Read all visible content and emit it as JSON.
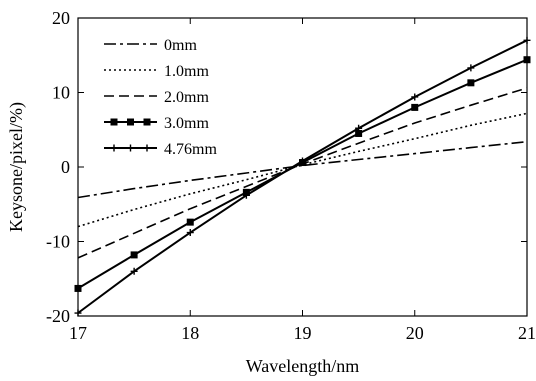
{
  "chart_data": {
    "type": "line",
    "title": "",
    "xlabel": "Wavelength/nm",
    "ylabel": "Keysone/pixel/%)",
    "xlim": [
      17,
      21
    ],
    "ylim": [
      -20,
      20
    ],
    "x_ticks": [
      17,
      18,
      19,
      20,
      21
    ],
    "y_ticks": [
      -20,
      -10,
      0,
      10,
      20
    ],
    "x_tick_labels": [
      "17",
      "18",
      "19",
      "20",
      "21"
    ],
    "y_tick_labels": [
      "-20",
      "-10",
      "0",
      "10",
      "20"
    ],
    "grid": false,
    "legend_position": "top-left",
    "x": [
      17,
      17.5,
      18,
      18.5,
      19,
      19.5,
      20,
      20.5,
      21
    ],
    "series": [
      {
        "name": "0mm",
        "style": "dashdot",
        "marker": "none",
        "values": [
          -4.1,
          -2.9,
          -1.8,
          -0.8,
          0.2,
          1.0,
          1.8,
          2.6,
          3.4
        ]
      },
      {
        "name": "1.0mm",
        "style": "dotted",
        "marker": "none",
        "values": [
          -8.0,
          -5.7,
          -3.6,
          -1.7,
          0.3,
          2.1,
          3.8,
          5.6,
          7.2
        ]
      },
      {
        "name": "2.0mm",
        "style": "dashed",
        "marker": "none",
        "values": [
          -12.2,
          -8.9,
          -5.6,
          -2.6,
          0.4,
          3.2,
          5.9,
          8.3,
          10.6
        ]
      },
      {
        "name": "3.0mm",
        "style": "solid",
        "marker": "square",
        "values": [
          -16.3,
          -11.8,
          -7.4,
          -3.4,
          0.6,
          4.5,
          8.0,
          11.3,
          14.4
        ]
      },
      {
        "name": "4.76mm",
        "style": "solid",
        "marker": "plus",
        "values": [
          -19.6,
          -14.0,
          -8.8,
          -3.8,
          0.8,
          5.2,
          9.4,
          13.3,
          17.0
        ]
      }
    ]
  }
}
